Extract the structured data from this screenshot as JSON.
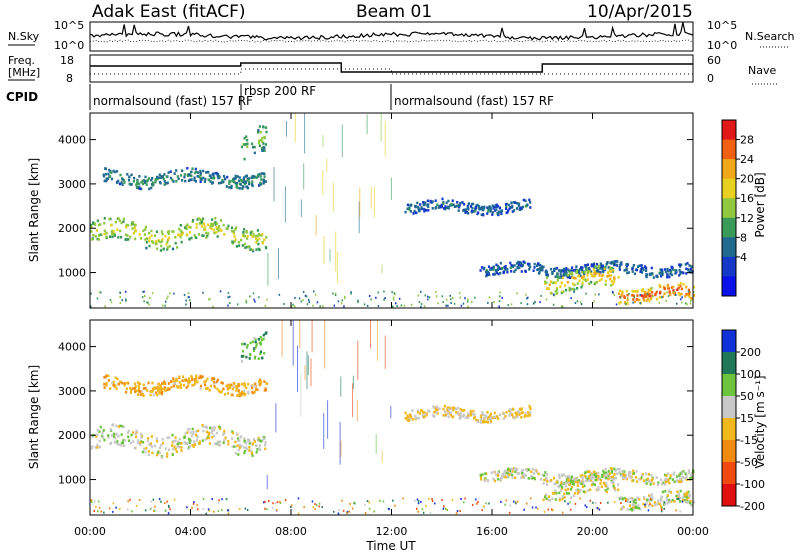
{
  "header": {
    "station": "Adak East (fitACF)",
    "beam": "Beam 01",
    "date": "10/Apr/2015"
  },
  "panels": {
    "noise": {
      "left_label": "N.Sky",
      "right_label": "N.Search",
      "left_ticks": [
        "10^5",
        "10^0"
      ],
      "right_ticks": [
        "10^5",
        "10^0"
      ]
    },
    "freq": {
      "left_label_1": "Freq.",
      "left_label_2": "[MHz]",
      "right_label": "Nave",
      "left_ticks": [
        "18",
        "8"
      ],
      "right_ticks": [
        "60",
        "0"
      ]
    },
    "cpid": {
      "label": "CPID",
      "segments": [
        {
          "text": "normalsound (fast) 157 RF",
          "start_hour": 0,
          "end_hour": 6
        },
        {
          "text": "rbsp 200 RF",
          "start_hour": 6,
          "end_hour": 12
        },
        {
          "text": "normalsound (fast) 157 RF",
          "start_hour": 12,
          "end_hour": 24
        }
      ]
    }
  },
  "colorbars": {
    "power": {
      "label": "Power [dB]",
      "ticks": [
        "28",
        "24",
        "20",
        "16",
        "12",
        "8",
        "4"
      ],
      "colors": [
        "#e01818",
        "#f06010",
        "#f0a818",
        "#e8d020",
        "#90c840",
        "#3a9a5a",
        "#206a90",
        "#1638c8",
        "#0a10e8"
      ]
    },
    "velocity": {
      "label": "Velocity [m s⁻¹]",
      "ticks": [
        "200",
        "100",
        "50",
        "15",
        "-15",
        "-50",
        "-100",
        "-200"
      ],
      "colors": [
        "#1030d8",
        "#207858",
        "#6cc43c",
        "#c8c8c8",
        "#f0b81c",
        "#f08a10",
        "#f04a10",
        "#e01010"
      ]
    }
  },
  "chart_data": [
    {
      "type": "heatmap",
      "name": "Power",
      "xlabel": "",
      "ylabel": "Slant Range [km]",
      "xlim": [
        0,
        24
      ],
      "ylim": [
        200,
        4600
      ],
      "yticks": [
        "1000",
        "2000",
        "3000",
        "4000"
      ],
      "xticks": [
        "00:00",
        "04:00",
        "08:00",
        "12:00",
        "16:00",
        "20:00",
        "00:00"
      ],
      "echo_bands": [
        {
          "x": [
            0,
            7.0
          ],
          "range_km": [
            1500,
            2300
          ],
          "power_db": 14
        },
        {
          "x": [
            0.5,
            7.0
          ],
          "range_km": [
            2900,
            3400
          ],
          "power_db": 8
        },
        {
          "x": [
            6.0,
            7.0
          ],
          "range_km": [
            3400,
            4400
          ],
          "power_db": 10
        },
        {
          "x": [
            12.5,
            17.5
          ],
          "range_km": [
            2300,
            2700
          ],
          "power_db": 6
        },
        {
          "x": [
            15.5,
            24
          ],
          "range_km": [
            900,
            1300
          ],
          "power_db": 6
        },
        {
          "x": [
            18.0,
            21.0
          ],
          "range_km": [
            500,
            1200
          ],
          "power_db": 16
        },
        {
          "x": [
            21.0,
            24
          ],
          "range_km": [
            300,
            800
          ],
          "power_db": 22
        }
      ]
    },
    {
      "type": "heatmap",
      "name": "Velocity",
      "xlabel": "Time UT",
      "ylabel": "Slant Range [km]",
      "xlim": [
        0,
        24
      ],
      "ylim": [
        200,
        4600
      ],
      "yticks": [
        "1000",
        "2000",
        "3000",
        "4000"
      ],
      "xticks": [
        "00:00",
        "04:00",
        "08:00",
        "12:00",
        "16:00",
        "20:00",
        "00:00"
      ],
      "echo_bands": [
        {
          "x": [
            0,
            7.0
          ],
          "range_km": [
            1500,
            2300
          ],
          "velocity_ms": 0
        },
        {
          "x": [
            0.5,
            7.0
          ],
          "range_km": [
            2900,
            3400
          ],
          "velocity_ms": -40
        },
        {
          "x": [
            6.0,
            7.0
          ],
          "range_km": [
            3400,
            4400
          ],
          "velocity_ms": 40
        },
        {
          "x": [
            12.5,
            17.5
          ],
          "range_km": [
            2300,
            2700
          ],
          "velocity_ms": -20
        },
        {
          "x": [
            15.5,
            24
          ],
          "range_km": [
            900,
            1300
          ],
          "velocity_ms": 0
        },
        {
          "x": [
            18.0,
            21.0
          ],
          "range_km": [
            500,
            1200
          ],
          "velocity_ms": 0
        },
        {
          "x": [
            21.0,
            24
          ],
          "range_km": [
            300,
            800
          ],
          "velocity_ms": 0
        }
      ]
    }
  ]
}
